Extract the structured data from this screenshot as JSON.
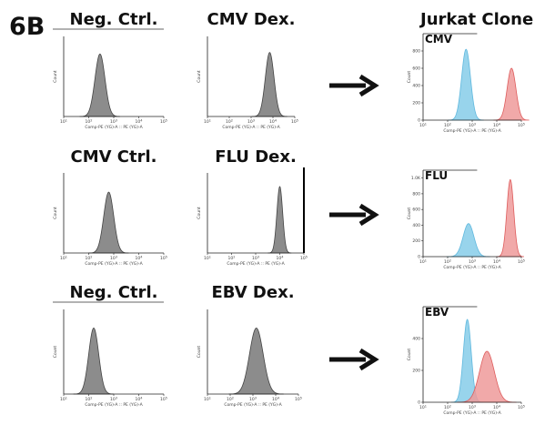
{
  "figure": {
    "panel_label": "6B",
    "column_titles": {
      "jurkat": "Jurkat Clone"
    },
    "arrow_icon": "right-arrow-icon",
    "colors": {
      "gray_fill": "#8c8c8c",
      "blue_fill": "#86cde9",
      "blue_line": "#5fb8de",
      "red_fill": "#ee9a9a",
      "red_line": "#de5c5c",
      "axis": "#222222"
    }
  },
  "chart_data": [
    {
      "id": "r1-neg-ctrl",
      "type": "area",
      "title": "Neg. Ctrl.",
      "xlabel": "Comp-PE (YG)-A :: PE (YG)-A",
      "ylabel": "Count",
      "xscale": "log",
      "xlim": [
        10,
        100000
      ],
      "xticks": [
        "10^1",
        "10^2",
        "10^3",
        "10^4",
        "10^5"
      ],
      "yticks": [],
      "series": [
        {
          "color": "gray",
          "peak_log10x": 2.45,
          "width": 0.2,
          "rel_height": 0.78
        }
      ]
    },
    {
      "id": "r1-cmv-dex",
      "type": "area",
      "title": "CMV Dex.",
      "xlabel": "Comp-PE (YG)-A :: PE (YG)-A",
      "ylabel": "Count",
      "xscale": "log",
      "xlim": [
        10,
        100000
      ],
      "xticks": [
        "10^1",
        "10^2",
        "10^3",
        "10^4",
        "10^5"
      ],
      "yticks": [],
      "series": [
        {
          "color": "gray",
          "peak_log10x": 3.85,
          "width": 0.2,
          "rel_height": 0.8
        }
      ]
    },
    {
      "id": "r1-jurkat-cmv",
      "type": "area",
      "title": "CMV",
      "xlabel": "Comp-PE (YG)-A :: PE (YG)-A",
      "ylabel": "Count",
      "xscale": "log",
      "xlim": [
        10,
        100000
      ],
      "xticks": [
        "10^1",
        "10^2",
        "10^3",
        "10^4",
        "10^5"
      ],
      "ylim": [
        0,
        1000
      ],
      "yticks": [
        "0",
        "200",
        "400",
        "600",
        "800"
      ],
      "series": [
        {
          "color": "blue",
          "peak_log10x": 2.75,
          "width": 0.18,
          "peak_count": 820
        },
        {
          "color": "red",
          "peak_log10x": 4.6,
          "width": 0.18,
          "peak_count": 600
        }
      ]
    },
    {
      "id": "r2-cmv-ctrl",
      "type": "area",
      "title": "CMV Ctrl.",
      "xlabel": "Comp-PE (YG)-A :: PE (YG)-A",
      "ylabel": "Count",
      "xscale": "log",
      "xlim": [
        10,
        100000
      ],
      "xticks": [
        "10^1",
        "10^2",
        "10^3",
        "10^4",
        "10^5"
      ],
      "yticks": [],
      "series": [
        {
          "color": "gray",
          "peak_log10x": 2.8,
          "width": 0.2,
          "rel_height": 0.76
        }
      ]
    },
    {
      "id": "r2-flu-dex",
      "type": "area",
      "title": "FLU Dex.",
      "xlabel": "Comp-PE (YG)-A :: PE (YG)-A",
      "ylabel": "Count",
      "xscale": "log",
      "xlim": [
        10,
        100000
      ],
      "xticks": [
        "10^1",
        "10^2",
        "10^3",
        "10^4",
        "10^5"
      ],
      "yticks": [],
      "series": [
        {
          "color": "gray",
          "peak_log10x": 4.0,
          "width": 0.12,
          "rel_height": 0.83
        }
      ]
    },
    {
      "id": "r2-jurkat-flu",
      "type": "area",
      "title": "FLU",
      "xlabel": "Comp-PE (YG)-A :: PE (YG)-A",
      "ylabel": "Count",
      "xscale": "log",
      "xlim": [
        10,
        100000
      ],
      "xticks": [
        "10^1",
        "10^2",
        "10^3",
        "10^4",
        "10^5"
      ],
      "ylim": [
        0,
        1100
      ],
      "yticks": [
        "0",
        "200",
        "400",
        "600",
        "800",
        "1.0K"
      ],
      "series": [
        {
          "color": "blue",
          "peak_log10x": 2.85,
          "width": 0.22,
          "peak_count": 420
        },
        {
          "color": "red",
          "peak_log10x": 4.55,
          "width": 0.14,
          "peak_count": 980
        }
      ]
    },
    {
      "id": "r3-neg-ctrl",
      "type": "area",
      "title": "Neg. Ctrl.",
      "xlabel": "Comp-PE (YG)-A :: PE (YG)-A",
      "ylabel": "Count",
      "xscale": "log",
      "xlim": [
        10,
        100000
      ],
      "xticks": [
        "10^1",
        "10^2",
        "10^3",
        "10^4",
        "10^5"
      ],
      "yticks": [],
      "series": [
        {
          "color": "gray",
          "peak_log10x": 2.2,
          "width": 0.2,
          "rel_height": 0.78
        }
      ]
    },
    {
      "id": "r3-ebv-dex",
      "type": "area",
      "title": "EBV Dex.",
      "xlabel": "Comp-PE (YG)-A :: PE (YG)-A",
      "ylabel": "Count",
      "xscale": "log",
      "xlim": [
        10,
        100000
      ],
      "xticks": [
        "10^1",
        "10^2",
        "10^3",
        "10^4",
        "10^5"
      ],
      "yticks": [],
      "series": [
        {
          "color": "gray",
          "peak_log10x": 3.15,
          "width": 0.3,
          "rel_height": 0.78
        }
      ]
    },
    {
      "id": "r3-jurkat-ebv",
      "type": "area",
      "title": "EBV",
      "xlabel": "Comp-PE (YG)-A :: PE (YG)-A",
      "ylabel": "Count",
      "xscale": "log",
      "xlim": [
        10,
        100000
      ],
      "xticks": [
        "10^1",
        "10^2",
        "10^3",
        "10^4",
        "10^5"
      ],
      "ylim": [
        0,
        600
      ],
      "yticks": [
        "0",
        "200",
        "400"
      ],
      "series": [
        {
          "color": "blue",
          "peak_log10x": 2.8,
          "width": 0.16,
          "peak_count": 520
        },
        {
          "color": "red",
          "peak_log10x": 3.6,
          "width": 0.3,
          "peak_count": 320
        }
      ]
    }
  ]
}
